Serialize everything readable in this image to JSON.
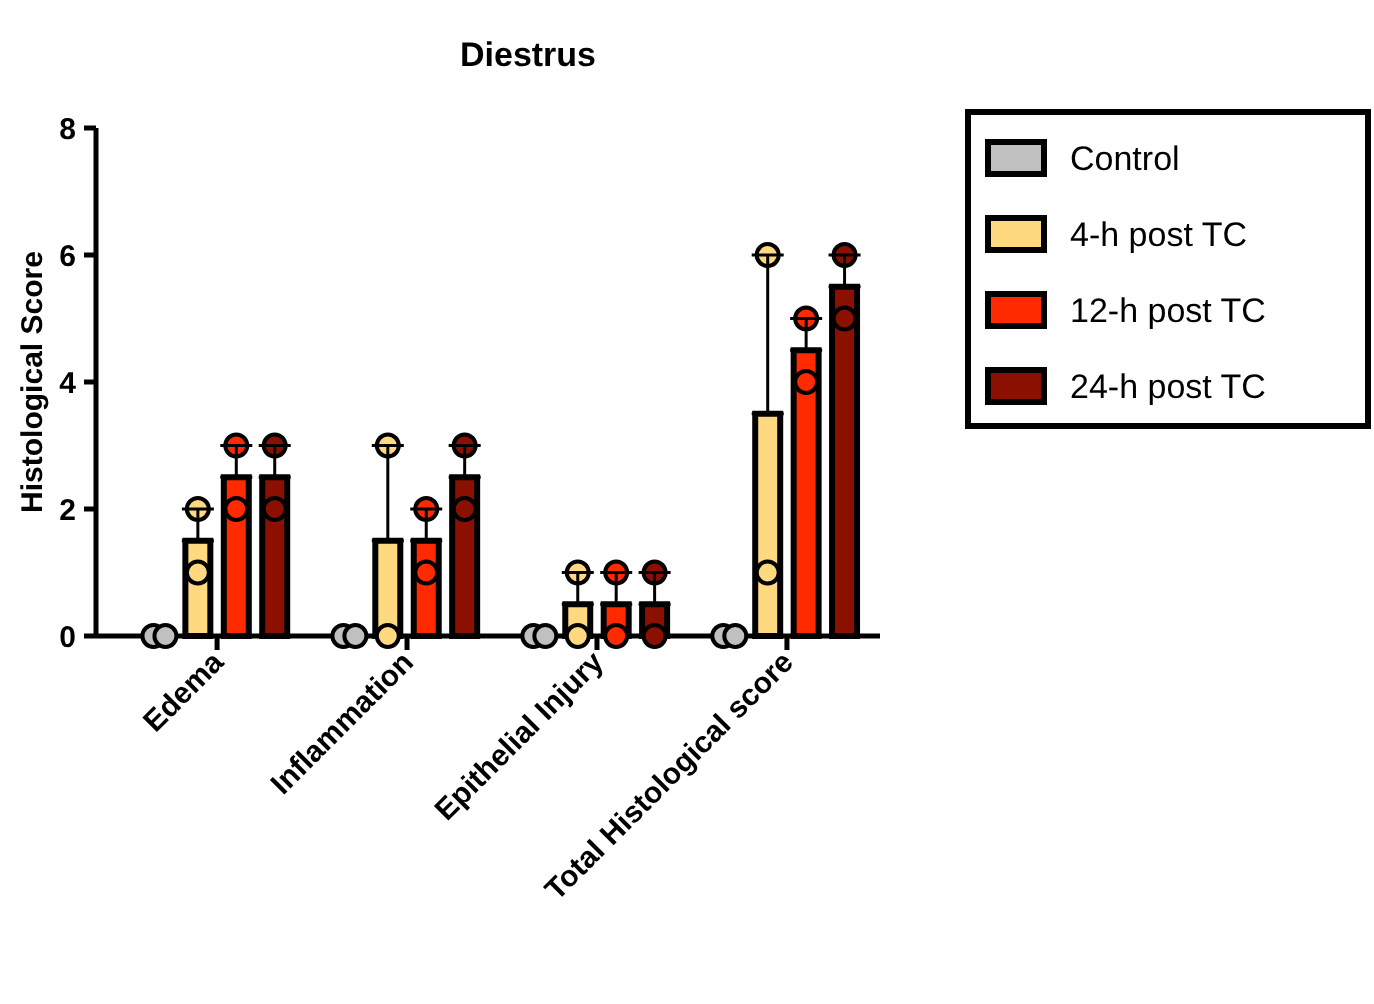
{
  "chart_data": {
    "type": "bar",
    "title": "Diestrus",
    "ylabel": "Histological Score",
    "categories": [
      "Edema",
      "Inflammation",
      "Epithelial Injury",
      "Total Histological score"
    ],
    "series": [
      {
        "name": "Control",
        "color": "#c0c0c0",
        "values": [
          0,
          0,
          0,
          0
        ]
      },
      {
        "name": "4-h post TC",
        "color": "#ffd980",
        "values": [
          1.5,
          1.5,
          0.5,
          3.5
        ],
        "errors": [
          [
            1.5,
            2
          ],
          [
            1.5,
            3
          ],
          [
            0.5,
            1
          ],
          [
            3.5,
            6
          ]
        ]
      },
      {
        "name": "12-h post TC",
        "color": "#ff2a00",
        "values": [
          2.5,
          1.5,
          0.5,
          4.5
        ],
        "errors": [
          [
            2.5,
            3
          ],
          [
            1.5,
            2
          ],
          [
            0.5,
            1
          ],
          [
            4.5,
            5
          ]
        ]
      },
      {
        "name": "24-h post TC",
        "color": "#8c1000",
        "values": [
          2.5,
          2.5,
          0.5,
          5.5
        ],
        "errors": [
          [
            2.5,
            3
          ],
          [
            2.5,
            3
          ],
          [
            0.5,
            1
          ],
          [
            5.5,
            6
          ]
        ]
      },
      {
        "type": "scatter",
        "color": "#c0c0c0",
        "x": [
          "Edema",
          "Edema",
          "Inflammation",
          "Inflammation",
          "Epithelial Injury",
          "Epithelial Injury",
          "Total Histological score",
          "Total Histological score"
        ],
        "values": [
          0,
          0,
          0,
          0,
          0,
          0,
          0,
          0
        ]
      },
      {
        "type": "scatter",
        "color": "#ffd980",
        "x": [
          "Edema",
          "Edema",
          "Inflammation",
          "Inflammation",
          "Epithelial Injury",
          "Epithelial Injury",
          "Total Histological score",
          "Total Histological score"
        ],
        "values": [
          1,
          2,
          0,
          3,
          0,
          1,
          1,
          6
        ]
      },
      {
        "type": "scatter",
        "color": "#ff2a00",
        "x": [
          "Edema",
          "Edema",
          "Inflammation",
          "Inflammation",
          "Epithelial Injury",
          "Epithelial Injury",
          "Total Histological score",
          "Total Histological score"
        ],
        "values": [
          2,
          3,
          1,
          2,
          0,
          1,
          4,
          5
        ]
      },
      {
        "type": "scatter",
        "color": "#8c1000",
        "x": [
          "Edema",
          "Edema",
          "Inflammation",
          "Inflammation",
          "Epithelial Injury",
          "Epithelial Injury",
          "Total Histological score",
          "Total Histological score"
        ],
        "values": [
          2,
          3,
          2,
          3,
          0,
          1,
          5,
          6
        ]
      }
    ],
    "ylim": [
      0,
      8
    ],
    "yticks": [
      0,
      2,
      4,
      6,
      8
    ],
    "grid": false,
    "legend": "right",
    "marker": "circle"
  }
}
